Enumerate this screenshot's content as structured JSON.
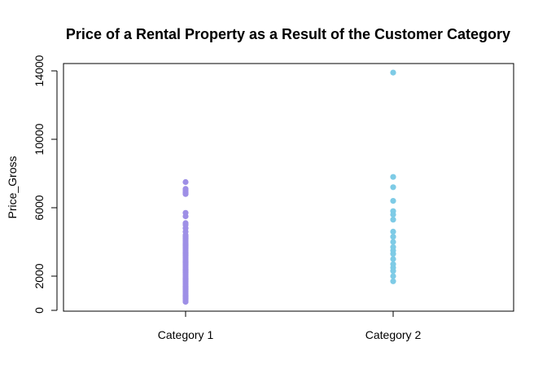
{
  "chart_data": {
    "type": "scatter",
    "title": "Price of a Rental Property as a Result of the Customer Category",
    "xlabel": "",
    "ylabel": "Price_Gross",
    "categories": [
      "Category 1",
      "Category 2"
    ],
    "y_ticks": [
      0,
      2000,
      6000,
      10000,
      14000
    ],
    "ylim": [
      0,
      14300
    ],
    "grid": false,
    "legend": "none",
    "series": [
      {
        "color": "#9e8fe6",
        "category_index": 0,
        "values": [
          500,
          600,
          700,
          800,
          900,
          1000,
          1100,
          1200,
          1300,
          1400,
          1500,
          1600,
          1700,
          1800,
          1900,
          2000,
          2100,
          2200,
          2300,
          2400,
          2500,
          2600,
          2700,
          2800,
          2900,
          3000,
          3100,
          3200,
          3300,
          3400,
          3500,
          3600,
          3700,
          3800,
          3900,
          4000,
          4100,
          4200,
          4300,
          4400,
          4600,
          4800,
          5000,
          5100,
          5500,
          5700,
          6800,
          6900,
          7000,
          7100,
          7500
        ]
      },
      {
        "color": "#7ecbe6",
        "category_index": 1,
        "values": [
          1700,
          2000,
          2300,
          2500,
          2700,
          3000,
          3300,
          3500,
          3700,
          4000,
          4300,
          4600,
          5300,
          5600,
          5800,
          6400,
          7200,
          7800,
          13900
        ]
      }
    ]
  }
}
